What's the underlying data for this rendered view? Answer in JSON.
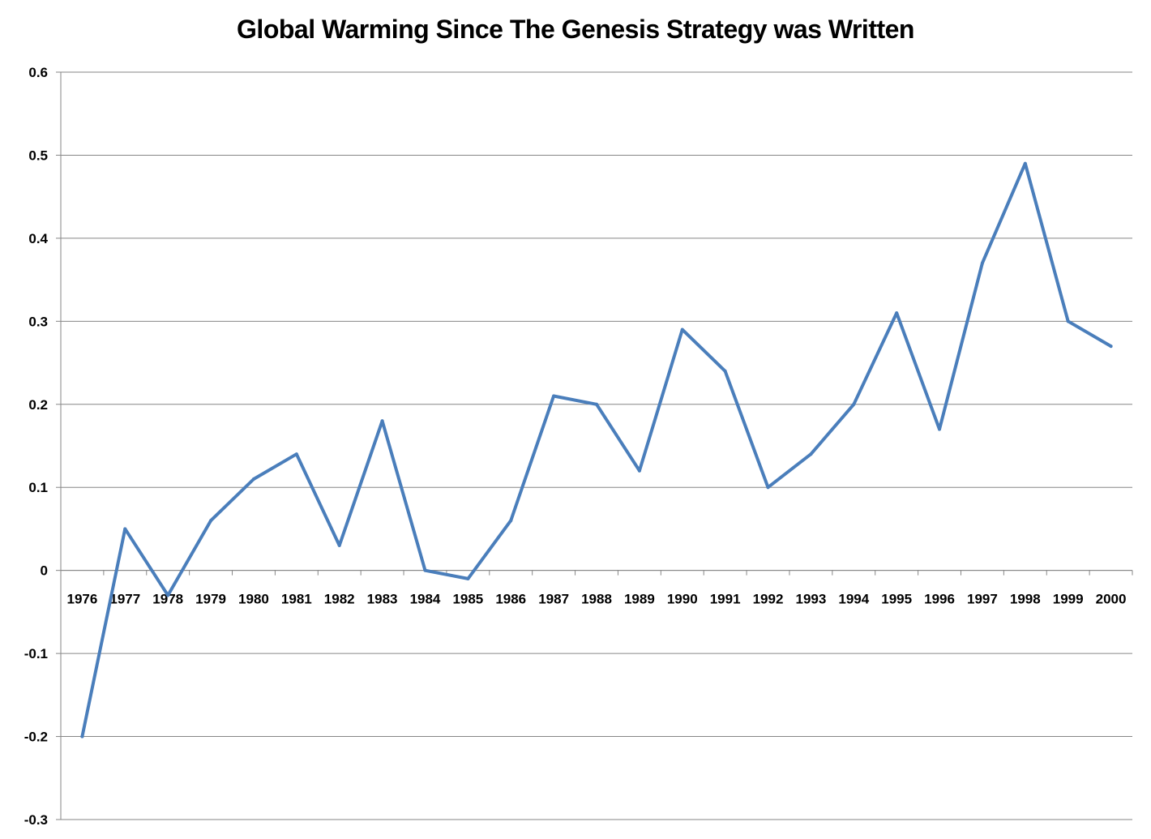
{
  "chart_data": {
    "type": "line",
    "title": "Global Warming Since The Genesis Strategy was Written",
    "xlabel": "",
    "ylabel": "",
    "categories": [
      "1976",
      "1977",
      "1978",
      "1979",
      "1980",
      "1981",
      "1982",
      "1983",
      "1984",
      "1985",
      "1986",
      "1987",
      "1988",
      "1989",
      "1990",
      "1991",
      "1992",
      "1993",
      "1994",
      "1995",
      "1996",
      "1997",
      "1998",
      "1999",
      "2000"
    ],
    "series": [
      {
        "values": [
          -0.2,
          0.05,
          -0.03,
          0.06,
          0.11,
          0.14,
          0.03,
          0.18,
          0.0,
          -0.01,
          0.06,
          0.21,
          0.2,
          0.12,
          0.29,
          0.24,
          0.1,
          0.14,
          0.2,
          0.31,
          0.17,
          0.37,
          0.49,
          0.3,
          0.27
        ],
        "color": "#4a7ebb"
      }
    ],
    "ylim": [
      -0.3,
      0.6
    ],
    "y_ticks": [
      "-0.3",
      "-0.2",
      "-0.1",
      "0",
      "0.1",
      "0.2",
      "0.3",
      "0.4",
      "0.5",
      "0.6"
    ],
    "grid": "horizontal",
    "legend": "none",
    "gridline_color": "#868686",
    "axis_color": "#868686"
  }
}
